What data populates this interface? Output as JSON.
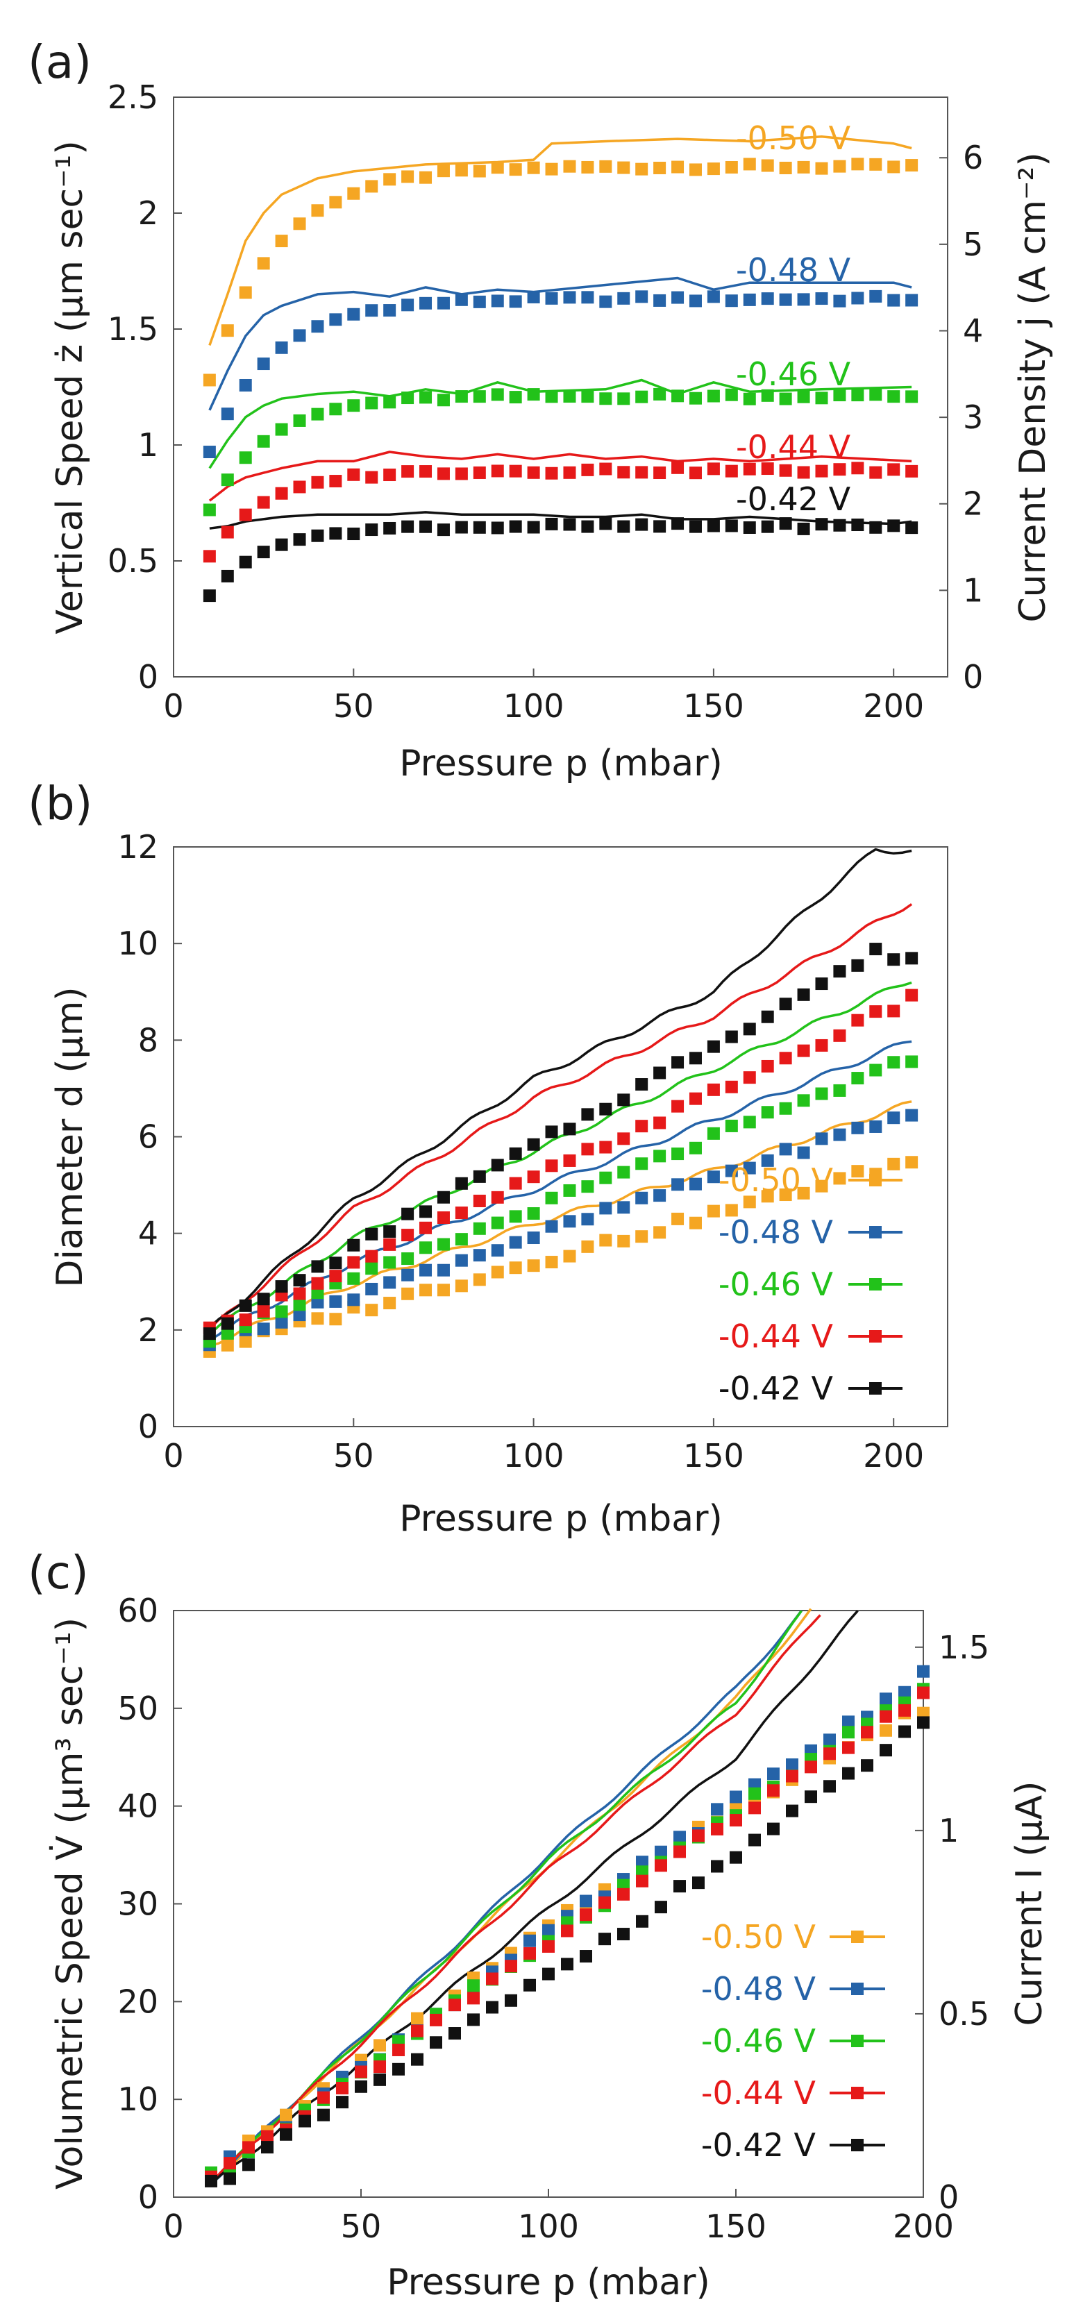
{
  "colors": {
    "-0.50 V": "#f5a623",
    "-0.48 V": "#2563a8",
    "-0.46 V": "#22c21a",
    "-0.44 V": "#e61919",
    "-0.42 V": "#111111"
  },
  "panel_labels": [
    "(a)",
    "(b)",
    "(c)"
  ],
  "chart_data": [
    {
      "id": "a",
      "type": "scatter",
      "title": "",
      "xlabel": "Pressure p (mbar)",
      "ylabel": "Vertical Speed ż (µm sec⁻¹)",
      "ylabel_right": "Current Density j (A cm⁻²)",
      "xlim": [
        0,
        215
      ],
      "ylim": [
        0,
        2.5
      ],
      "y2lim": [
        0,
        6.7
      ],
      "xticks": [
        0,
        50,
        100,
        150,
        200
      ],
      "yticks": [
        0,
        0.5,
        1,
        1.5,
        2,
        2.5
      ],
      "y2ticks": [
        0,
        1,
        2,
        3,
        4,
        5,
        6
      ],
      "xtick_labels": [
        "0",
        "50",
        "100",
        "150",
        "200"
      ],
      "ytick_labels": [
        "0",
        "0.5",
        "1",
        "1.5",
        "2",
        "2.5"
      ],
      "y2tick_labels": [
        "0",
        "1",
        "2",
        "3",
        "4",
        "5",
        "6"
      ],
      "curve_labels": [
        "-0.50 V",
        "-0.48 V",
        "-0.46 V",
        "-0.44 V",
        "-0.42 V"
      ],
      "series": [
        {
          "name": "-0.50 V",
          "markers": {
            "x0": 10,
            "dx": 5,
            "n": 40,
            "plateau": 2.2,
            "low": 1.28,
            "k": 0.12
          },
          "line": {
            "y": [
              [
                10,
                1.43
              ],
              [
                15,
                1.65
              ],
              [
                20,
                1.88
              ],
              [
                25,
                2.0
              ],
              [
                30,
                2.08
              ],
              [
                40,
                2.15
              ],
              [
                50,
                2.18
              ],
              [
                70,
                2.21
              ],
              [
                90,
                2.22
              ],
              [
                100,
                2.23
              ],
              [
                105,
                2.3
              ],
              [
                120,
                2.31
              ],
              [
                140,
                2.32
              ],
              [
                160,
                2.31
              ],
              [
                180,
                2.33
              ],
              [
                200,
                2.3
              ],
              [
                205,
                2.28
              ]
            ]
          }
        },
        {
          "name": "-0.48 V",
          "markers": {
            "x0": 10,
            "dx": 5,
            "n": 40,
            "plateau": 1.63,
            "low": 0.97,
            "k": 0.13
          },
          "line": {
            "y": [
              [
                10,
                1.15
              ],
              [
                15,
                1.32
              ],
              [
                20,
                1.47
              ],
              [
                25,
                1.56
              ],
              [
                30,
                1.6
              ],
              [
                40,
                1.65
              ],
              [
                50,
                1.66
              ],
              [
                60,
                1.64
              ],
              [
                70,
                1.68
              ],
              [
                80,
                1.65
              ],
              [
                90,
                1.67
              ],
              [
                100,
                1.66
              ],
              [
                120,
                1.69
              ],
              [
                140,
                1.72
              ],
              [
                150,
                1.67
              ],
              [
                160,
                1.7
              ],
              [
                180,
                1.7
              ],
              [
                200,
                1.7
              ],
              [
                205,
                1.68
              ]
            ]
          }
        },
        {
          "name": "-0.46 V",
          "markers": {
            "x0": 10,
            "dx": 5,
            "n": 40,
            "plateau": 1.21,
            "low": 0.72,
            "k": 0.14
          },
          "line": {
            "y": [
              [
                10,
                0.9
              ],
              [
                15,
                1.02
              ],
              [
                20,
                1.12
              ],
              [
                25,
                1.17
              ],
              [
                30,
                1.2
              ],
              [
                40,
                1.22
              ],
              [
                50,
                1.23
              ],
              [
                60,
                1.21
              ],
              [
                70,
                1.24
              ],
              [
                80,
                1.22
              ],
              [
                90,
                1.27
              ],
              [
                100,
                1.23
              ],
              [
                120,
                1.24
              ],
              [
                130,
                1.28
              ],
              [
                140,
                1.22
              ],
              [
                150,
                1.27
              ],
              [
                160,
                1.23
              ],
              [
                180,
                1.24
              ],
              [
                205,
                1.25
              ]
            ]
          }
        },
        {
          "name": "-0.44 V",
          "markers": {
            "x0": 10,
            "dx": 5,
            "n": 40,
            "plateau": 0.89,
            "low": 0.52,
            "k": 0.15
          },
          "line": {
            "y": [
              [
                10,
                0.76
              ],
              [
                15,
                0.82
              ],
              [
                20,
                0.86
              ],
              [
                30,
                0.9
              ],
              [
                40,
                0.93
              ],
              [
                50,
                0.93
              ],
              [
                60,
                0.97
              ],
              [
                70,
                0.95
              ],
              [
                80,
                0.94
              ],
              [
                90,
                0.96
              ],
              [
                100,
                0.94
              ],
              [
                110,
                0.96
              ],
              [
                120,
                0.94
              ],
              [
                130,
                0.95
              ],
              [
                140,
                0.93
              ],
              [
                150,
                0.94
              ],
              [
                160,
                0.93
              ],
              [
                180,
                0.95
              ],
              [
                205,
                0.93
              ]
            ]
          }
        },
        {
          "name": "-0.42 V",
          "markers": {
            "x0": 10,
            "dx": 5,
            "n": 40,
            "plateau": 0.65,
            "low": 0.35,
            "k": 0.15
          },
          "line": {
            "y": [
              [
                10,
                0.64
              ],
              [
                15,
                0.65
              ],
              [
                20,
                0.67
              ],
              [
                30,
                0.69
              ],
              [
                40,
                0.7
              ],
              [
                50,
                0.7
              ],
              [
                60,
                0.7
              ],
              [
                70,
                0.71
              ],
              [
                80,
                0.7
              ],
              [
                90,
                0.7
              ],
              [
                100,
                0.7
              ],
              [
                110,
                0.69
              ],
              [
                120,
                0.69
              ],
              [
                130,
                0.7
              ],
              [
                140,
                0.68
              ],
              [
                150,
                0.68
              ],
              [
                160,
                0.69
              ],
              [
                180,
                0.67
              ],
              [
                200,
                0.66
              ],
              [
                205,
                0.67
              ]
            ]
          }
        }
      ]
    },
    {
      "id": "b",
      "type": "scatter",
      "title": "",
      "xlabel": "Pressure p (mbar)",
      "ylabel": "Diameter d (µm)",
      "xlim": [
        0,
        215
      ],
      "ylim": [
        0,
        12
      ],
      "xticks": [
        0,
        50,
        100,
        150,
        200
      ],
      "yticks": [
        0,
        2,
        4,
        6,
        8,
        10,
        12
      ],
      "xtick_labels": [
        "0",
        "50",
        "100",
        "150",
        "200"
      ],
      "ytick_labels": [
        "0",
        "2",
        "4",
        "6",
        "8",
        "10",
        "12"
      ],
      "legend": [
        "-0.50 V",
        "-0.48 V",
        "-0.46 V",
        "-0.44 V",
        "-0.42 V"
      ],
      "legend_position": "bottom-right",
      "series": [
        {
          "name": "-0.50 V",
          "markers": [
            [
              10,
              1.6
            ],
            [
              205,
              5.5
            ]
          ],
          "line": [
            [
              10,
              1.7
            ],
            [
              50,
              2.95
            ],
            [
              100,
              4.2
            ],
            [
              150,
              5.3
            ],
            [
              205,
              6.7
            ]
          ]
        },
        {
          "name": "-0.48 V",
          "markers": [
            [
              10,
              1.75
            ],
            [
              205,
              6.5
            ]
          ],
          "line": [
            [
              10,
              1.85
            ],
            [
              50,
              3.4
            ],
            [
              100,
              4.9
            ],
            [
              150,
              6.35
            ],
            [
              205,
              8.0
            ]
          ]
        },
        {
          "name": "-0.46 V",
          "markers": [
            [
              10,
              1.85
            ],
            [
              205,
              7.6
            ]
          ],
          "line": [
            [
              10,
              1.95
            ],
            [
              50,
              3.9
            ],
            [
              100,
              5.7
            ],
            [
              150,
              7.4
            ],
            [
              205,
              9.25
            ]
          ]
        },
        {
          "name": "-0.44 V",
          "markers": [
            [
              10,
              1.95
            ],
            [
              205,
              8.85
            ]
          ],
          "line": [
            [
              10,
              2.0
            ],
            [
              50,
              4.5
            ],
            [
              100,
              6.8
            ],
            [
              150,
              8.5
            ],
            [
              205,
              10.85
            ]
          ]
        },
        {
          "name": "-0.42 V",
          "markers": [
            [
              10,
              2.0
            ],
            [
              195,
              9.8
            ],
            [
              205,
              9.7
            ]
          ],
          "line": [
            [
              10,
              2.0
            ],
            [
              50,
              4.7
            ],
            [
              100,
              7.2
            ],
            [
              150,
              9.0
            ],
            [
              195,
              11.95
            ],
            [
              205,
              11.9
            ]
          ]
        }
      ]
    },
    {
      "id": "c",
      "type": "scatter",
      "title": "",
      "xlabel": "Pressure p (mbar)",
      "ylabel": "Volumetric Speed V̇ (µm³ sec⁻¹)",
      "ylabel_right": "Current I (µA)",
      "xlim": [
        0,
        200
      ],
      "ylim": [
        0,
        60
      ],
      "y2lim": [
        0,
        1.6
      ],
      "xticks": [
        0,
        50,
        100,
        150,
        200
      ],
      "yticks": [
        0,
        10,
        20,
        30,
        40,
        50,
        60
      ],
      "y2ticks": [
        0,
        0.5,
        1,
        1.5
      ],
      "xtick_labels": [
        "0",
        "50",
        "100",
        "150",
        "200"
      ],
      "ytick_labels": [
        "0",
        "10",
        "20",
        "30",
        "40",
        "50",
        "60"
      ],
      "y2tick_labels": [
        "0",
        "0.5",
        "1",
        "1.5"
      ],
      "legend": [
        "-0.50 V",
        "-0.48 V",
        "-0.46 V",
        "-0.44 V",
        "-0.42 V"
      ],
      "legend_position": "bottom-right",
      "series": [
        {
          "name": "-0.50 V",
          "markers": [
            [
              10,
              2.5
            ],
            [
              100,
              27.5
            ],
            [
              150,
              40.0
            ],
            [
              200,
              50.0
            ]
          ],
          "line": [
            [
              10,
              1.5
            ],
            [
              100,
              34.0
            ],
            [
              150,
              51.0
            ],
            [
              170,
              60.0
            ]
          ]
        },
        {
          "name": "-0.48 V",
          "markers": [
            [
              10,
              2.2
            ],
            [
              100,
              27.0
            ],
            [
              150,
              40.5
            ],
            [
              200,
              53.5
            ]
          ],
          "line": [
            [
              10,
              1.5
            ],
            [
              100,
              35.0
            ],
            [
              150,
              52.0
            ],
            [
              168,
              60.0
            ]
          ]
        },
        {
          "name": "-0.46 V",
          "markers": [
            [
              10,
              2.0
            ],
            [
              100,
              26.5
            ],
            [
              150,
              39.5
            ],
            [
              200,
              52.0
            ]
          ],
          "line": [
            [
              10,
              1.5
            ],
            [
              100,
              34.5
            ],
            [
              150,
              50.5
            ],
            [
              168,
              60.0
            ]
          ]
        },
        {
          "name": "-0.44 V",
          "markers": [
            [
              10,
              1.8
            ],
            [
              100,
              26.0
            ],
            [
              150,
              39.0
            ],
            [
              200,
              51.0
            ]
          ],
          "line": [
            [
              10,
              1.5
            ],
            [
              100,
              33.5
            ],
            [
              150,
              49.5
            ],
            [
              173,
              60.0
            ]
          ]
        },
        {
          "name": "-0.42 V",
          "markers": [
            [
              10,
              1.3
            ],
            [
              100,
              22.5
            ],
            [
              150,
              35.0
            ],
            [
              200,
              48.5
            ]
          ],
          "line": [
            [
              10,
              1.2
            ],
            [
              100,
              29.5
            ],
            [
              150,
              45.0
            ],
            [
              183,
              60.0
            ]
          ]
        }
      ]
    }
  ]
}
